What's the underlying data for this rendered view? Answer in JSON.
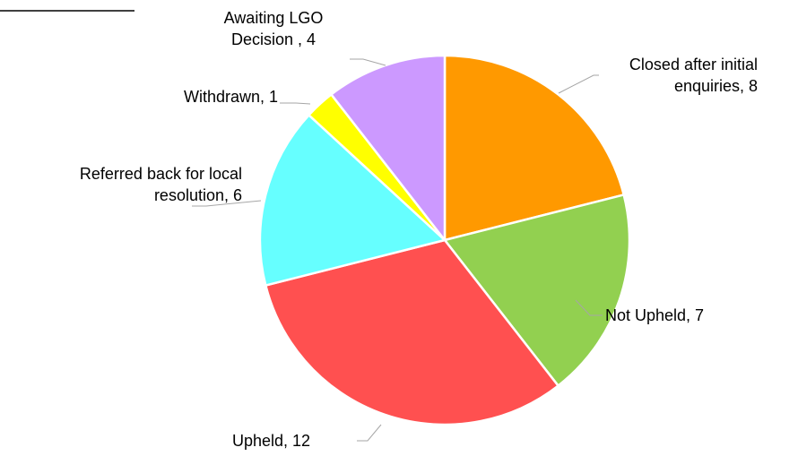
{
  "chart_data": {
    "type": "pie",
    "categories": [
      "Closed after initial enquiries",
      "Not Upheld",
      "Upheld",
      "Referred back for local resolution",
      "Withdrawn",
      "Awaiting LGO Decision "
    ],
    "values": [
      8,
      7,
      12,
      6,
      1,
      4
    ],
    "value_labels": [
      "Closed after initial enquiries, 8",
      "Not Upheld, 7",
      "Upheld, 12",
      "Referred back for local resolution, 6",
      "Withdrawn, 1",
      "Awaiting LGO Decision , 4"
    ],
    "colors": [
      "#FF9900",
      "#92D050",
      "#FF5050",
      "#66FFFF",
      "#FFFF00",
      "#CC99FF"
    ]
  }
}
